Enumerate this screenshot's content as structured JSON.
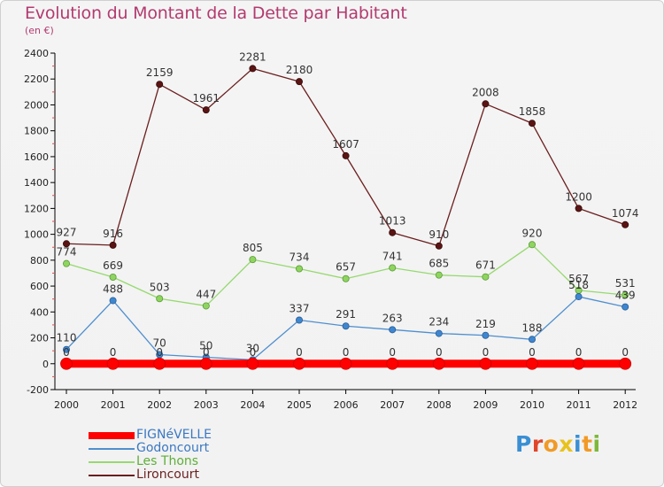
{
  "title": "Evolution du Montant de la Dette par Habitant",
  "subtitle": "(en €)",
  "logo": {
    "letters": [
      "P",
      "r",
      "o",
      "x",
      "i",
      "t",
      "i"
    ],
    "colors": [
      "#3a8fd4",
      "#e0462b",
      "#f19a27",
      "#e8c21d",
      "#3a8fd4",
      "#f19a27",
      "#7db83a"
    ]
  },
  "chart_data": {
    "type": "line",
    "title": "Evolution du Montant de la Dette par Habitant",
    "subtitle": "(en €)",
    "x": [
      "2000",
      "2001",
      "2002",
      "2003",
      "2004",
      "2005",
      "2006",
      "2007",
      "2008",
      "2009",
      "2010",
      "2011",
      "2012"
    ],
    "ylim": [
      -200,
      2400
    ],
    "yticks": [
      -200,
      0,
      200,
      400,
      600,
      800,
      1000,
      1200,
      1400,
      1600,
      1800,
      2000,
      2200,
      2400
    ],
    "grid": false,
    "legend_position": "bottom-left",
    "series": [
      {
        "name": "FIGNéVELLE",
        "color": "#ff0000",
        "values": [
          0,
          0,
          0,
          0,
          0,
          0,
          0,
          0,
          0,
          0,
          0,
          0,
          0
        ]
      },
      {
        "name": "Godoncourt",
        "color": "#4f8fcf",
        "values": [
          110,
          488,
          70,
          50,
          30,
          337,
          291,
          263,
          234,
          219,
          188,
          518,
          439
        ]
      },
      {
        "name": "Les Thons",
        "color": "#96d96f",
        "values": [
          774,
          669,
          503,
          447,
          805,
          734,
          657,
          741,
          685,
          671,
          920,
          567,
          531
        ]
      },
      {
        "name": "Lironcourt",
        "color": "#6b1e1e",
        "values": [
          927,
          916,
          2159,
          1961,
          2281,
          2180,
          1607,
          1013,
          910,
          2008,
          1858,
          1200,
          1074
        ]
      }
    ]
  }
}
